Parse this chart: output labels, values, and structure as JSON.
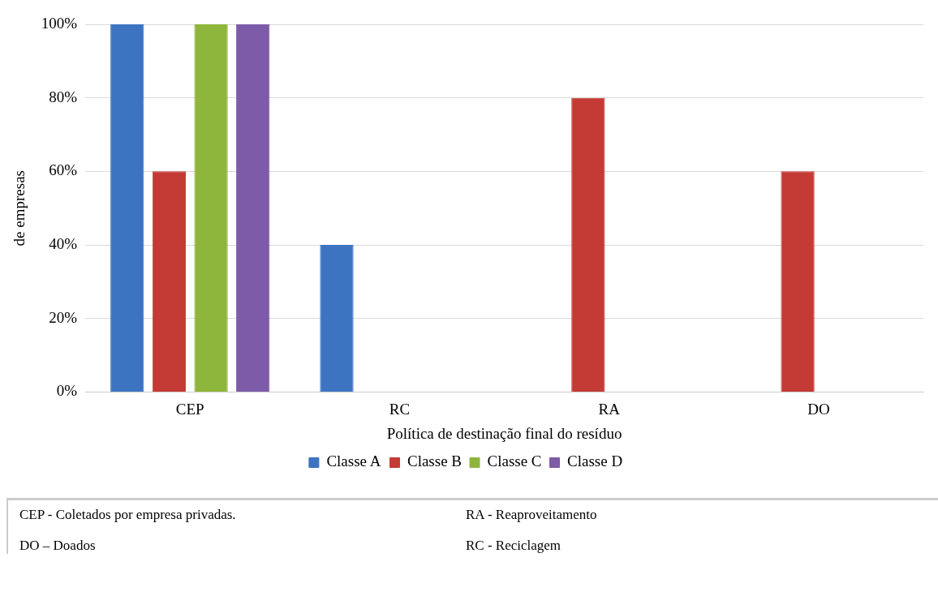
{
  "chart_data": {
    "type": "bar",
    "xlabel": "Política de destinação final do resíduo",
    "ylabel": "de empresas",
    "categories": [
      "CEP",
      "RC",
      "RA",
      "DO"
    ],
    "series": [
      {
        "name": "Classe A",
        "color": "#3c74c2",
        "values": [
          100,
          40,
          0,
          0
        ]
      },
      {
        "name": "Classe B",
        "color": "#c43a35",
        "values": [
          60,
          0,
          80,
          60
        ]
      },
      {
        "name": "Classe C",
        "color": "#8fb63c",
        "values": [
          100,
          0,
          0,
          0
        ]
      },
      {
        "name": "Classe D",
        "color": "#7e5ba8",
        "values": [
          100,
          0,
          0,
          0
        ]
      }
    ],
    "ylim": [
      0,
      100
    ],
    "yticks": [
      {
        "value": 0,
        "label": "0%"
      },
      {
        "value": 20,
        "label": "20%"
      },
      {
        "value": 40,
        "label": "40%"
      },
      {
        "value": 60,
        "label": "60%"
      },
      {
        "value": 80,
        "label": "80%"
      },
      {
        "value": 100,
        "label": "100%"
      }
    ],
    "grid": "y",
    "legend": "bottom",
    "annotations": [
      "CEP - Coletados por empresa privadas.",
      "RA - Reaproveitamento",
      "DO – Doados",
      "RC - Reciclagem"
    ]
  }
}
